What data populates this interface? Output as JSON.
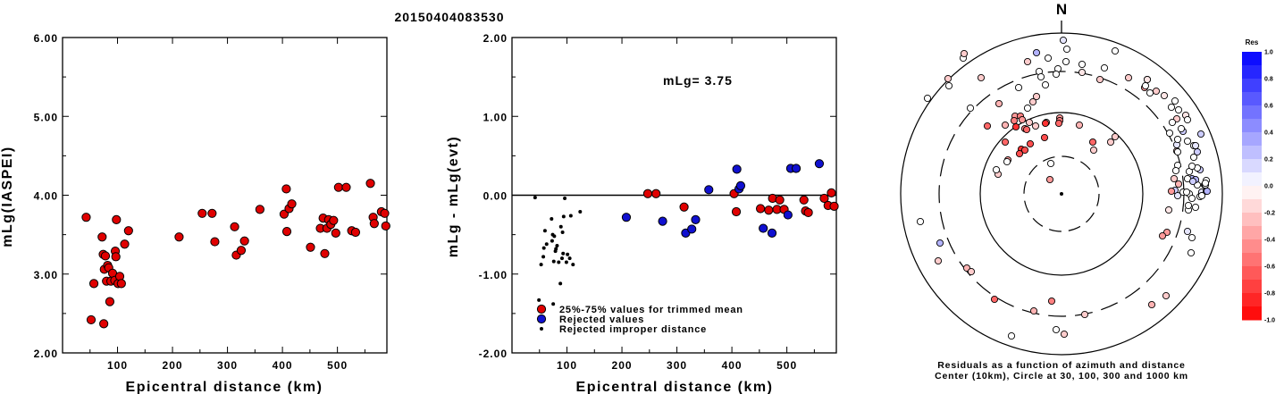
{
  "title": "20150404083530",
  "colors": {
    "red": "#e00000",
    "blue": "#1010d0",
    "black": "#000000"
  },
  "chart_data": [
    {
      "type": "scatter",
      "xlabel": "Epicentral distance (km)",
      "ylabel": "mLg(IASPEI)",
      "xlim": [
        0,
        590
      ],
      "ylim": [
        2.0,
        6.0
      ],
      "x_ticks": [
        "100",
        "200",
        "300",
        "400",
        "500"
      ],
      "y_ticks": [
        "2.00",
        "3.00",
        "4.00",
        "5.00",
        "6.00"
      ],
      "series": [
        {
          "color": "red",
          "points": [
            [
              43,
              3.72
            ],
            [
              52,
              2.42
            ],
            [
              57,
              2.88
            ],
            [
              72,
              3.47
            ],
            [
              74,
              3.25
            ],
            [
              75,
              2.37
            ],
            [
              76,
              3.06
            ],
            [
              78,
              3.23
            ],
            [
              80,
              2.91
            ],
            [
              82,
              3.11
            ],
            [
              84,
              3.08
            ],
            [
              86,
              2.65
            ],
            [
              88,
              2.91
            ],
            [
              91,
              3.01
            ],
            [
              95,
              2.92
            ],
            [
              96,
              3.29
            ],
            [
              97,
              3.22
            ],
            [
              98,
              3.69
            ],
            [
              101,
              2.88
            ],
            [
              104,
              2.97
            ],
            [
              107,
              2.88
            ],
            [
              113,
              3.38
            ],
            [
              120,
              3.55
            ],
            [
              212,
              3.47
            ],
            [
              254,
              3.77
            ],
            [
              272,
              3.77
            ],
            [
              277,
              3.41
            ],
            [
              313,
              3.6
            ],
            [
              316,
              3.24
            ],
            [
              325,
              3.3
            ],
            [
              331,
              3.42
            ],
            [
              359,
              3.82
            ],
            [
              403,
              3.76
            ],
            [
              407,
              4.08
            ],
            [
              408,
              3.54
            ],
            [
              412,
              3.83
            ],
            [
              417,
              3.89
            ],
            [
              451,
              3.34
            ],
            [
              469,
              3.58
            ],
            [
              474,
              3.71
            ],
            [
              477,
              3.26
            ],
            [
              481,
              3.58
            ],
            [
              484,
              3.69
            ],
            [
              488,
              3.63
            ],
            [
              493,
              3.68
            ],
            [
              497,
              3.52
            ],
            [
              502,
              4.1
            ],
            [
              516,
              4.1
            ],
            [
              526,
              3.55
            ],
            [
              533,
              3.53
            ],
            [
              560,
              4.15
            ],
            [
              565,
              3.72
            ],
            [
              567,
              3.64
            ],
            [
              580,
              3.79
            ],
            [
              586,
              3.77
            ],
            [
              588,
              3.61
            ]
          ]
        }
      ]
    },
    {
      "type": "scatter",
      "xlabel": "Epicentral distance (km)",
      "ylabel": "mLg - mLg(evt)",
      "xlim": [
        0,
        590
      ],
      "ylim": [
        -2.0,
        2.0
      ],
      "x_ticks": [
        "100",
        "200",
        "300",
        "400",
        "500"
      ],
      "y_ticks": [
        "-2.00",
        "-1.00",
        "0.00",
        "1.00",
        "2.00"
      ],
      "annotation": "mLg= 3.75",
      "series": [
        {
          "name": "25%-75% values for trimmed mean",
          "color": "red",
          "marker": "large",
          "points": [
            [
              247,
              0.02
            ],
            [
              262,
              0.02
            ],
            [
              313,
              -0.15
            ],
            [
              404,
              0.02
            ],
            [
              408,
              -0.21
            ],
            [
              452,
              -0.17
            ],
            [
              467,
              -0.19
            ],
            [
              474,
              -0.04
            ],
            [
              482,
              -0.18
            ],
            [
              487,
              -0.06
            ],
            [
              495,
              -0.18
            ],
            [
              531,
              -0.06
            ],
            [
              534,
              -0.2
            ],
            [
              539,
              -0.22
            ],
            [
              568,
              -0.04
            ],
            [
              575,
              -0.13
            ],
            [
              581,
              0.03
            ],
            [
              586,
              -0.14
            ]
          ]
        },
        {
          "name": "Rejected values",
          "color": "blue",
          "marker": "large",
          "points": [
            [
              208,
              -0.28
            ],
            [
              274,
              -0.33
            ],
            [
              316,
              -0.48
            ],
            [
              327,
              -0.43
            ],
            [
              334,
              -0.31
            ],
            [
              358,
              0.07
            ],
            [
              409,
              0.33
            ],
            [
              413,
              0.08
            ],
            [
              416,
              0.12
            ],
            [
              457,
              -0.42
            ],
            [
              473,
              -0.48
            ],
            [
              502,
              -0.25
            ],
            [
              507,
              0.34
            ],
            [
              517,
              0.34
            ],
            [
              559,
              0.4
            ]
          ]
        },
        {
          "name": "Rejected improper distance",
          "color": "black",
          "marker": "small",
          "points": [
            [
              42,
              -0.03
            ],
            [
              49,
              -1.33
            ],
            [
              53,
              -0.88
            ],
            [
              57,
              -0.78
            ],
            [
              58,
              -0.67
            ],
            [
              60,
              -0.45
            ],
            [
              63,
              -0.62
            ],
            [
              72,
              -0.3
            ],
            [
              73,
              -0.58
            ],
            [
              74,
              -0.5
            ],
            [
              75,
              -1.38
            ],
            [
              76,
              -0.84
            ],
            [
              77,
              -0.52
            ],
            [
              79,
              -0.71
            ],
            [
              80,
              -0.68
            ],
            [
              82,
              -0.64
            ],
            [
              85,
              -0.85
            ],
            [
              88,
              -1.12
            ],
            [
              89,
              -0.4
            ],
            [
              91,
              -0.8
            ],
            [
              92,
              -0.47
            ],
            [
              93,
              -0.74
            ],
            [
              94,
              -0.27
            ],
            [
              96,
              -0.04
            ],
            [
              99,
              -0.85
            ],
            [
              101,
              -0.75
            ],
            [
              105,
              -0.8
            ],
            [
              107,
              -0.26
            ],
            [
              111,
              -0.88
            ],
            [
              124,
              -0.21
            ]
          ]
        }
      ]
    },
    {
      "type": "scatter",
      "subtype": "polar residual map",
      "north_label": "N",
      "caption_line1": "Residuals as a function of azimuth and distance",
      "caption_line2": "Center (10km), Circle at 30, 100, 300 and 1000 km",
      "colorbar_title": "Res",
      "colorbar_ticks": [
        "1.0",
        "0.8",
        "0.6",
        "0.4",
        "0.2",
        "0.0",
        "-0.2",
        "-0.4",
        "-0.6",
        "-0.8",
        "-1.0"
      ],
      "points": [
        [
          -150,
          -107,
          0.0
        ],
        [
          -126,
          -121,
          0.0
        ],
        [
          -127,
          -129,
          -0.2
        ],
        [
          -110,
          -152,
          0.0
        ],
        [
          -109,
          -157,
          -0.2
        ],
        [
          -90,
          -130,
          -0.2
        ],
        [
          -38,
          -96,
          0.0
        ],
        [
          -28,
          -109,
          -0.2
        ],
        [
          -32,
          -103,
          -0.2
        ],
        [
          -12,
          -34,
          0.0
        ],
        [
          -36,
          -80,
          -0.2
        ],
        [
          -29,
          -76,
          -0.2
        ],
        [
          6,
          -162,
          0.0
        ],
        [
          2,
          -172,
          0.1
        ],
        [
          23,
          -136,
          -0.1
        ],
        [
          43,
          -128,
          -0.2
        ],
        [
          -28,
          -158,
          0.3
        ],
        [
          -71,
          -22,
          -0.2
        ],
        [
          -17,
          -80,
          -0.2
        ],
        [
          20,
          -77,
          -0.3
        ],
        [
          -83,
          -76,
          -0.6
        ],
        [
          -63,
          -77,
          -0.3
        ],
        [
          -52,
          -87,
          -0.4
        ],
        [
          -46,
          -87,
          -0.5
        ],
        [
          -44,
          -83,
          -0.4
        ],
        [
          -60,
          -38,
          -0.4
        ],
        [
          -53,
          -82,
          -0.5
        ],
        [
          -41,
          -73,
          -0.5
        ],
        [
          -2,
          -85,
          -0.4
        ],
        [
          -2,
          -82,
          -0.5
        ],
        [
          -3,
          -79,
          -0.6
        ],
        [
          -18,
          -79,
          -0.8
        ],
        [
          -19,
          -63,
          -0.7
        ],
        [
          -51,
          -75,
          -0.8
        ],
        [
          35,
          -58,
          -0.6
        ],
        [
          55,
          -58,
          -0.2
        ],
        [
          60,
          -64,
          -0.2
        ],
        [
          -45,
          -50,
          -0.8
        ],
        [
          -39,
          -72,
          -0.6
        ],
        [
          -63,
          -58,
          -0.6
        ],
        [
          -35,
          -56,
          -0.7
        ],
        [
          -41,
          -49,
          -0.7
        ],
        [
          -47,
          -45,
          -0.7
        ],
        [
          36,
          -49,
          -0.2
        ],
        [
          -73,
          -27,
          0.0
        ],
        [
          -13,
          -16,
          -0.4
        ],
        [
          -102,
          -96,
          0.0
        ],
        [
          -61,
          -36,
          0.0
        ],
        [
          -158,
          31,
          0.0
        ],
        [
          -136,
          55,
          0.3
        ],
        [
          -138,
          75,
          -0.2
        ],
        [
          -106,
          83,
          -0.3
        ],
        [
          -101,
          87,
          -0.2
        ],
        [
          -75,
          118,
          -0.6
        ],
        [
          -31,
          131,
          -0.3
        ],
        [
          -6,
          152,
          0.0
        ],
        [
          3,
          157,
          -0.2
        ],
        [
          -56,
          159,
          0.0
        ],
        [
          -11,
          120,
          -0.5
        ],
        [
          26,
          135,
          -0.2
        ],
        [
          101,
          124,
          -0.3
        ],
        [
          117,
          114,
          -0.2
        ],
        [
          155,
          -27,
          0.2
        ],
        [
          146,
          -17,
          0.3
        ],
        [
          141,
          -17,
          0.0
        ],
        [
          129,
          -55,
          0.1
        ],
        [
          157,
          -2,
          0.1
        ],
        [
          152,
          -29,
          0.0
        ],
        [
          136,
          -70,
          0.2
        ],
        [
          129,
          -84,
          -0.2
        ],
        [
          127,
          -4,
          0.2
        ],
        [
          130,
          -61,
          0.0
        ],
        [
          139,
          -88,
          -0.1
        ],
        [
          123,
          -97,
          0.0
        ],
        [
          150,
          15,
          0.0
        ],
        [
          143,
          0,
          0.0
        ],
        [
          130,
          2,
          0.1
        ],
        [
          136,
          -2,
          0.0
        ],
        [
          152,
          -47,
          0.2
        ],
        [
          96,
          -128,
          -0.2
        ],
        [
          106,
          -115,
          -0.2
        ],
        [
          123,
          -3,
          -0.4
        ],
        [
          129,
          -48,
          -0.2
        ],
        [
          162,
          -15,
          0.0
        ],
        [
          120,
          18,
          -0.1
        ],
        [
          143,
          -25,
          0.0
        ],
        [
          152,
          -10,
          0.0
        ],
        [
          146,
          5,
          0.0
        ],
        [
          160,
          -10,
          0.0
        ],
        [
          130,
          -32,
          0.0
        ],
        [
          148,
          -41,
          0.0
        ],
        [
          155,
          3,
          0.0
        ],
        [
          142,
          18,
          0.0
        ],
        [
          146,
          49,
          0.0
        ],
        [
          145,
          66,
          0.0
        ],
        [
          141,
          42,
          0.1
        ],
        [
          142,
          13,
          0.0
        ],
        [
          126,
          -17,
          -0.2
        ],
        [
          131,
          -11,
          -0.3
        ],
        [
          162,
          -3,
          0.2
        ],
        [
          163,
          -3,
          0.3
        ],
        [
          150,
          -16,
          0.3
        ],
        [
          147,
          -14,
          0.2
        ],
        [
          161,
          -10,
          0.0
        ],
        [
          157,
          2,
          0.0
        ],
        [
          140,
          -2,
          0.0
        ],
        [
          118,
          43,
          -0.4
        ],
        [
          113,
          47,
          -0.4
        ],
        [
          148,
          -54,
          0.0
        ],
        [
          93,
          -119,
          -0.4
        ],
        [
          161,
          -12,
          0.0
        ],
        [
          146,
          -31,
          0.0
        ],
        [
          130,
          -47,
          0.0
        ],
        [
          128,
          -26,
          0.0
        ],
        [
          141,
          -59,
          0.0
        ],
        [
          134,
          -73,
          0.0
        ],
        [
          121,
          -68,
          0.0
        ],
        [
          124,
          -80,
          0.0
        ],
        [
          156,
          -67,
          0.2
        ],
        [
          150,
          -54,
          0.1
        ],
        [
          141,
          -83,
          0.0
        ],
        [
          131,
          -94,
          0.0
        ],
        [
          127,
          -104,
          0.0
        ],
        [
          115,
          -110,
          -0.1
        ],
        [
          99,
          -113,
          0.0
        ],
        [
          94,
          -121,
          0.0
        ],
        [
          96,
          -128,
          -0.1
        ],
        [
          75,
          -130,
          -0.2
        ],
        [
          48,
          -141,
          0.0
        ],
        [
          60,
          -160,
          0.0
        ],
        [
          23,
          -145,
          0.0
        ],
        [
          -25,
          -137,
          0.0
        ],
        [
          -15,
          -152,
          0.0
        ],
        [
          -4,
          -140,
          0.0
        ],
        [
          5,
          -148,
          0.0
        ],
        [
          -23,
          -131,
          0.0
        ],
        [
          -6,
          -134,
          0.0
        ],
        [
          -18,
          -122,
          0.0
        ],
        [
          -38,
          -148,
          -0.2
        ],
        [
          -48,
          -119,
          0.0
        ],
        [
          -70,
          -101,
          -0.3
        ]
      ]
    }
  ]
}
